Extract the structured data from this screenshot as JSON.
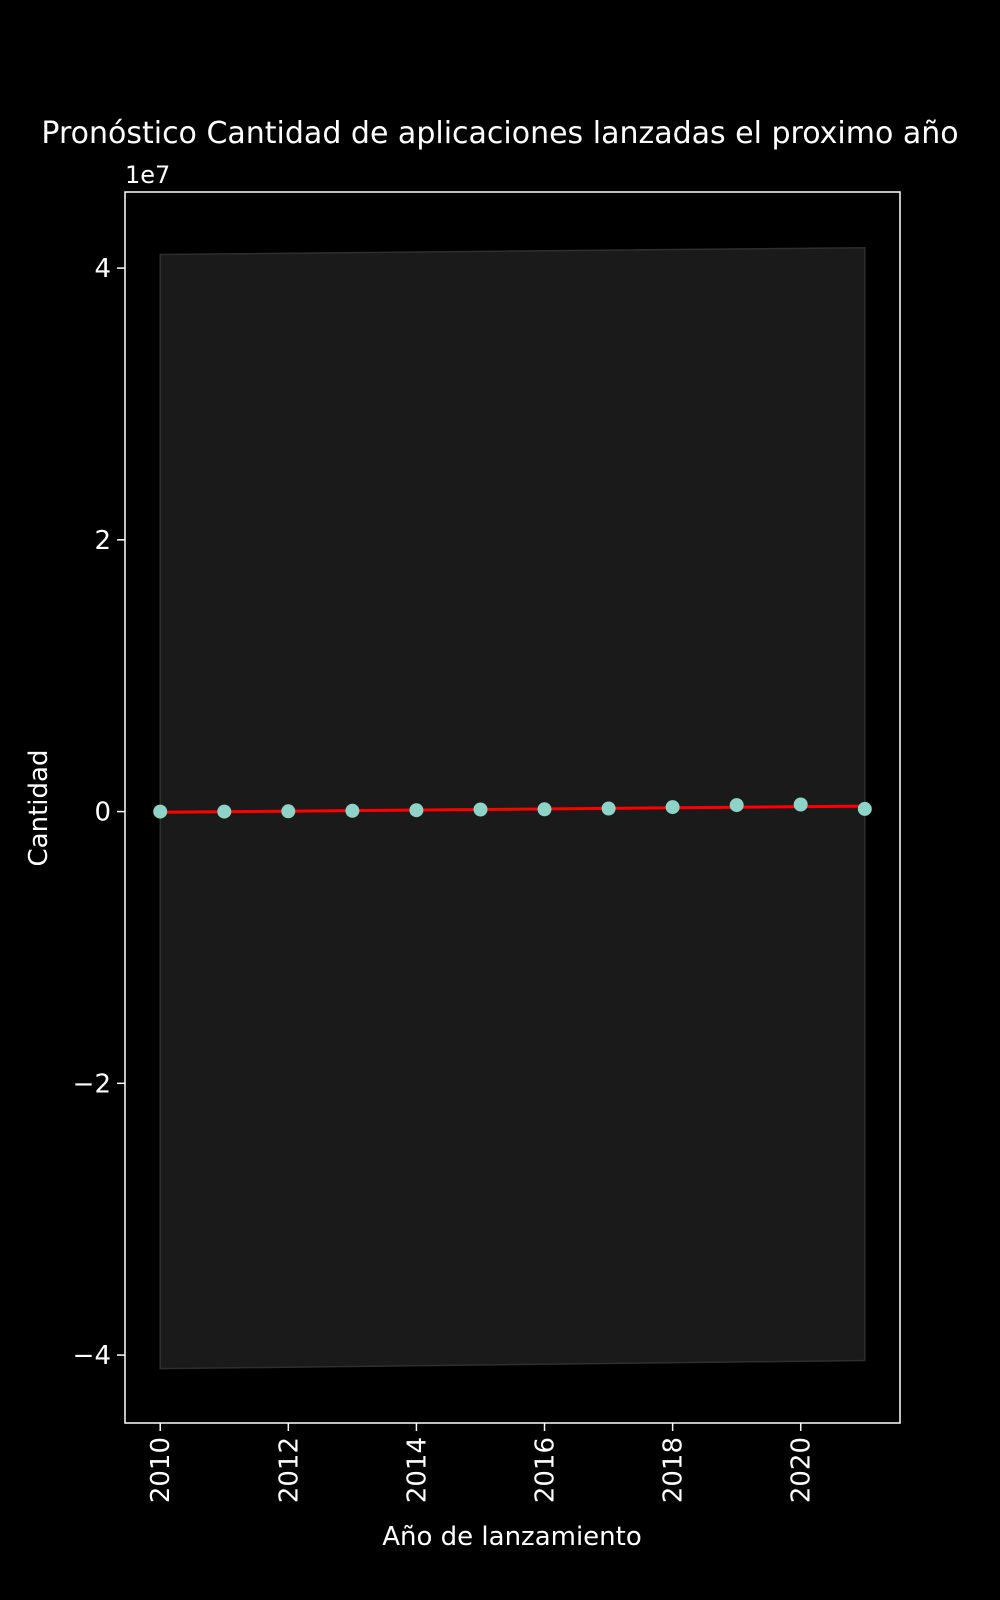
{
  "chart_data": {
    "type": "scatter",
    "title": "Pronóstico Cantidad de aplicaciones lanzadas el proximo año",
    "xlabel": "Año de lanzamiento",
    "ylabel": "Cantidad",
    "y_offset_text": "1e7",
    "xlim": [
      2009.45,
      2021.55
    ],
    "ylim": [
      -45000000,
      45600000
    ],
    "x_ticks": [
      2010,
      2012,
      2014,
      2016,
      2018,
      2020
    ],
    "x_tick_labels": [
      "2010",
      "2012",
      "2014",
      "2016",
      "2018",
      "2020"
    ],
    "y_ticks": [
      -40000000,
      -20000000,
      0,
      20000000,
      40000000
    ],
    "y_tick_labels": [
      "−4",
      "−2",
      "0",
      "2",
      "4"
    ],
    "grid": false,
    "series": [
      {
        "kind": "scatter",
        "color": "#8dd3c7",
        "x": [
          2010,
          2011,
          2012,
          2013,
          2014,
          2015,
          2016,
          2017,
          2018,
          2019,
          2020,
          2021
        ],
        "y": [
          0,
          0,
          20000,
          60000,
          100000,
          150000,
          170000,
          230000,
          330000,
          480000,
          520000,
          200000
        ]
      },
      {
        "kind": "line",
        "color": "#ff0000",
        "x": [
          2010,
          2021
        ],
        "y": [
          -50000,
          400000
        ]
      }
    ],
    "confidence_band": {
      "color": "#1a1a1a",
      "x": [
        2010,
        2021
      ],
      "upper": [
        41000000,
        41500000
      ],
      "lower": [
        -41000000,
        -40400000
      ]
    }
  }
}
